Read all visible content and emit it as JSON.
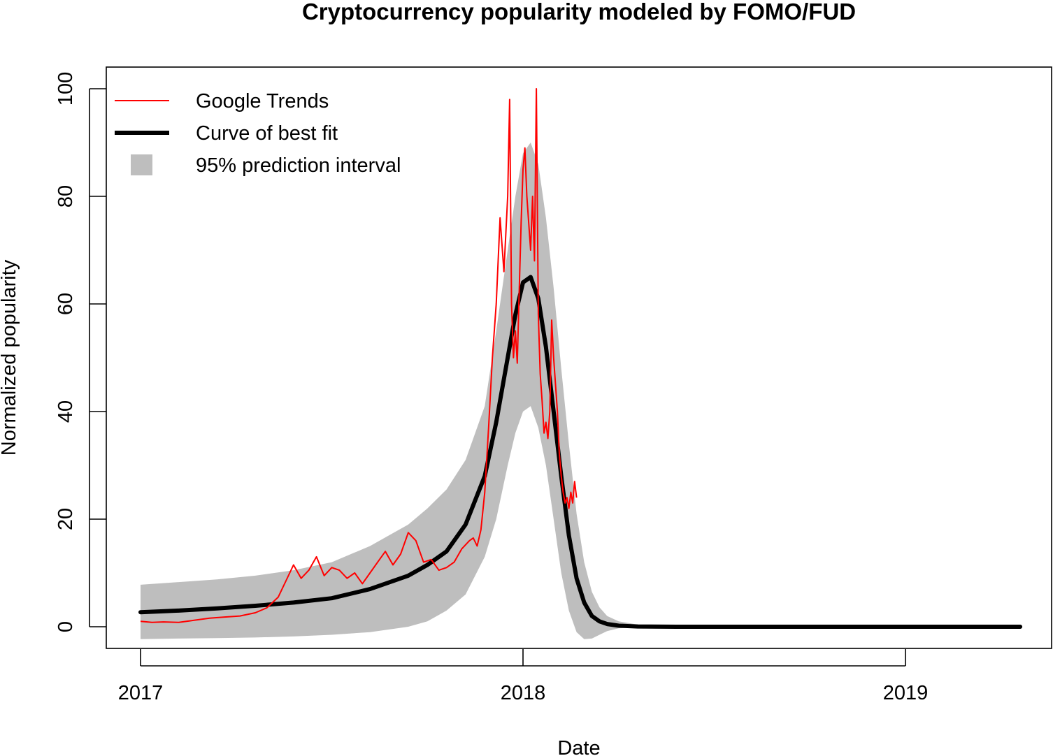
{
  "chart_data": {
    "type": "line",
    "title": "Cryptocurrency popularity modeled by FOMO/FUD",
    "xlabel": "Date",
    "ylabel": "Normalized popularity",
    "xlim": [
      2016.91,
      2019.38
    ],
    "ylim": [
      -4,
      100
    ],
    "x_ticks": [
      {
        "value": 2017,
        "label": "2017"
      },
      {
        "value": 2018,
        "label": "2018"
      },
      {
        "value": 2019,
        "label": "2019"
      }
    ],
    "y_ticks": [
      {
        "value": 0,
        "label": "0"
      },
      {
        "value": 20,
        "label": "20"
      },
      {
        "value": 40,
        "label": "40"
      },
      {
        "value": 60,
        "label": "60"
      },
      {
        "value": 80,
        "label": "80"
      },
      {
        "value": 100,
        "label": "100"
      }
    ],
    "legend": {
      "position": "top-left",
      "entries": [
        {
          "label": "Google Trends",
          "color": "#ff0000",
          "kind": "line"
        },
        {
          "label": "Curve of best fit",
          "color": "#000000",
          "kind": "thick-line"
        },
        {
          "label": "95% prediction interval",
          "color": "#bebebe",
          "kind": "box"
        }
      ]
    },
    "series": [
      {
        "name": "Google Trends",
        "color": "#ff0000",
        "x": [
          2017.0,
          2017.03,
          2017.06,
          2017.1,
          2017.14,
          2017.18,
          2017.22,
          2017.26,
          2017.3,
          2017.33,
          2017.36,
          2017.38,
          2017.4,
          2017.42,
          2017.44,
          2017.46,
          2017.48,
          2017.5,
          2017.52,
          2017.54,
          2017.56,
          2017.58,
          2017.6,
          2017.62,
          2017.64,
          2017.66,
          2017.68,
          2017.7,
          2017.72,
          2017.74,
          2017.76,
          2017.78,
          2017.8,
          2017.82,
          2017.84,
          2017.86,
          2017.87,
          2017.88,
          2017.89,
          2017.9,
          2017.91,
          2017.92,
          2017.93,
          2017.94,
          2017.95,
          2017.955,
          2017.96,
          2017.965,
          2017.97,
          2017.975,
          2017.98,
          2017.985,
          2017.99,
          2017.995,
          2018.0,
          2018.005,
          2018.01,
          2018.015,
          2018.02,
          2018.025,
          2018.03,
          2018.035,
          2018.04,
          2018.045,
          2018.05,
          2018.055,
          2018.06,
          2018.065,
          2018.07,
          2018.075,
          2018.08,
          2018.085,
          2018.09,
          2018.095,
          2018.1,
          2018.105,
          2018.11,
          2018.115,
          2018.12,
          2018.125,
          2018.13,
          2018.135,
          2018.14
        ],
        "values": [
          1,
          0.8,
          0.9,
          0.8,
          1.2,
          1.6,
          1.8,
          2.0,
          2.6,
          3.5,
          5.5,
          8.5,
          11.5,
          9.0,
          10.5,
          13.0,
          9.5,
          11.0,
          10.5,
          9.0,
          10.0,
          8.0,
          10.0,
          12.0,
          14.0,
          11.5,
          13.5,
          17.5,
          16.0,
          12.0,
          12.5,
          10.5,
          11.0,
          12.0,
          14.5,
          16.0,
          16.5,
          15.0,
          18.0,
          25.0,
          37.0,
          50.0,
          60.0,
          76.0,
          66.0,
          73.0,
          80.0,
          98.0,
          60.0,
          50.0,
          55.0,
          49.0,
          62.0,
          75.0,
          85.0,
          89.0,
          80.0,
          75.0,
          70.0,
          80.0,
          68.0,
          100.0,
          58.0,
          47.0,
          42.0,
          36.0,
          38.0,
          35.0,
          40.0,
          57.0,
          50.0,
          45.0,
          40.0,
          32.0,
          28.0,
          25.0,
          23.0,
          24.0,
          22.0,
          25.0,
          23.0,
          27.0,
          24.0
        ]
      },
      {
        "name": "Curve of best fit",
        "color": "#000000",
        "x": [
          2017.0,
          2017.1,
          2017.2,
          2017.3,
          2017.4,
          2017.5,
          2017.6,
          2017.7,
          2017.75,
          2017.8,
          2017.85,
          2017.9,
          2017.93,
          2017.96,
          2017.98,
          2018.0,
          2018.02,
          2018.04,
          2018.06,
          2018.08,
          2018.1,
          2018.12,
          2018.14,
          2018.16,
          2018.18,
          2018.2,
          2018.22,
          2018.25,
          2018.3,
          2018.4,
          2018.6,
          2019.0,
          2019.3
        ],
        "values": [
          2.7,
          3.0,
          3.4,
          3.9,
          4.5,
          5.3,
          7.0,
          9.5,
          11.5,
          14.0,
          19.0,
          28.0,
          38.0,
          50.0,
          58.0,
          64.0,
          65.0,
          61.0,
          52.0,
          40.0,
          28.0,
          17.0,
          9.0,
          4.5,
          2.0,
          1.0,
          0.5,
          0.2,
          0.05,
          0.0,
          0.0,
          0.0,
          0.0
        ]
      },
      {
        "name": "95% prediction interval",
        "color": "#bebebe",
        "x": [
          2017.0,
          2017.1,
          2017.2,
          2017.3,
          2017.4,
          2017.5,
          2017.6,
          2017.7,
          2017.75,
          2017.8,
          2017.85,
          2017.9,
          2017.93,
          2017.96,
          2017.98,
          2018.0,
          2018.02,
          2018.04,
          2018.06,
          2018.08,
          2018.1,
          2018.12,
          2018.14,
          2018.16,
          2018.18,
          2018.2,
          2018.22,
          2018.25,
          2018.3,
          2018.4,
          2018.6,
          2019.0,
          2019.3
        ],
        "upper": [
          7.8,
          8.3,
          8.8,
          9.5,
          10.5,
          12.0,
          15.0,
          19.0,
          22.0,
          25.5,
          31.0,
          41.0,
          55.0,
          70.0,
          80.0,
          88.0,
          90.0,
          86.0,
          76.0,
          63.0,
          48.0,
          34.0,
          21.0,
          12.0,
          6.5,
          3.6,
          2.0,
          1.0,
          0.4,
          0.1,
          0.0,
          0.0,
          0.0
        ],
        "lower": [
          -2.3,
          -2.2,
          -2.1,
          -2.0,
          -1.8,
          -1.5,
          -1.0,
          0.0,
          1.0,
          3.0,
          6.0,
          13.0,
          20.0,
          30.0,
          36.0,
          40.0,
          41.0,
          37.0,
          30.0,
          20.0,
          10.0,
          3.0,
          -1.0,
          -2.3,
          -2.2,
          -1.5,
          -0.8,
          -0.3,
          -0.1,
          0.0,
          0.0,
          0.0,
          0.0
        ]
      }
    ]
  }
}
